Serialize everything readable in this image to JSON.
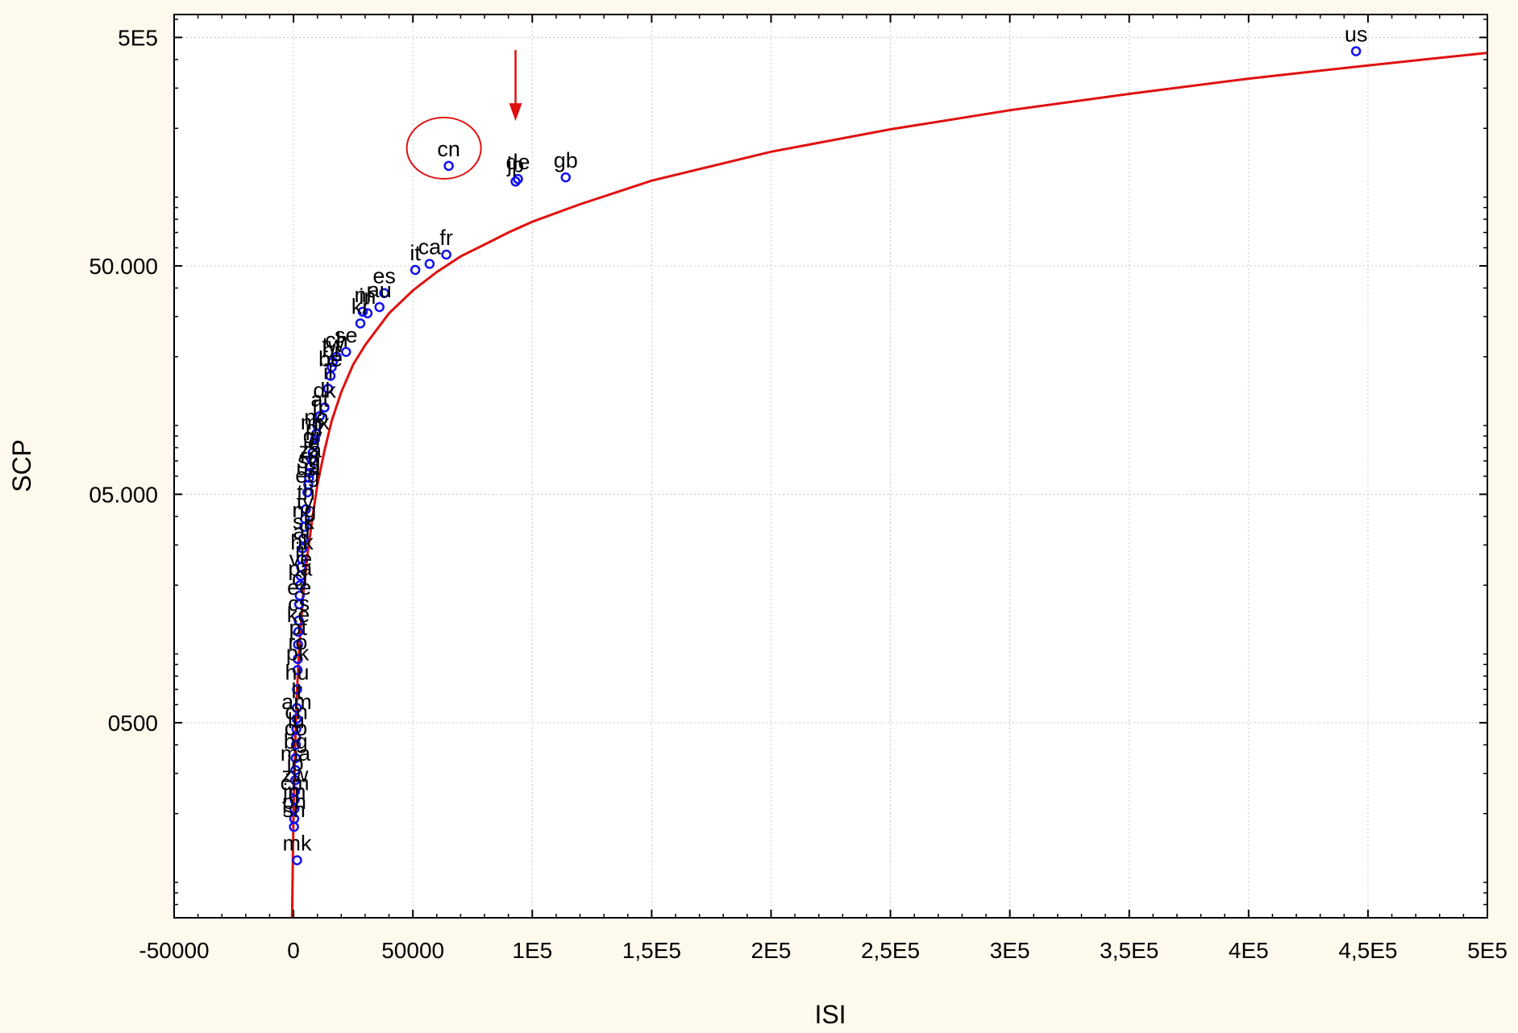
{
  "chart_data": {
    "type": "scatter",
    "title": "",
    "xlabel": "ISI",
    "ylabel": "SCP",
    "x_scale": "linear",
    "y_scale": "log",
    "xlim": [
      -50000,
      500000
    ],
    "ylim": [
      70,
      630000
    ],
    "grid": true,
    "legend": "none",
    "x_ticks": [
      {
        "value": -50000,
        "label": "-50000"
      },
      {
        "value": 0,
        "label": "0"
      },
      {
        "value": 50000,
        "label": "50000"
      },
      {
        "value": 100000,
        "label": "1E5"
      },
      {
        "value": 150000,
        "label": "1,5E5"
      },
      {
        "value": 200000,
        "label": "2E5"
      },
      {
        "value": 250000,
        "label": "2,5E5"
      },
      {
        "value": 300000,
        "label": "3E5"
      },
      {
        "value": 350000,
        "label": "3,5E5"
      },
      {
        "value": 400000,
        "label": "4E5"
      },
      {
        "value": 450000,
        "label": "4,5E5"
      },
      {
        "value": 500000,
        "label": "5E5"
      }
    ],
    "y_ticks": [
      {
        "value": 500,
        "label": "0500"
      },
      {
        "value": 5000,
        "label": "05.000"
      },
      {
        "value": 50000,
        "label": "50.000"
      },
      {
        "value": 500000,
        "label": "5E5"
      }
    ],
    "colors": {
      "points": "#1010ee",
      "fit": "#e01010",
      "annotation": "#e01010"
    },
    "fit_curve": {
      "label": "",
      "points": [
        [
          -600,
          70
        ],
        [
          -300,
          120
        ],
        [
          0,
          200
        ],
        [
          700,
          400
        ],
        [
          1500,
          700
        ],
        [
          2500,
          1100
        ],
        [
          4000,
          1800
        ],
        [
          6000,
          2800
        ],
        [
          8000,
          4000
        ],
        [
          10000,
          5500
        ],
        [
          13000,
          7800
        ],
        [
          16000,
          10500
        ],
        [
          20000,
          14000
        ],
        [
          25000,
          18500
        ],
        [
          30000,
          22500
        ],
        [
          40000,
          31000
        ],
        [
          50000,
          39000
        ],
        [
          60000,
          47000
        ],
        [
          70000,
          55000
        ],
        [
          80000,
          62000
        ],
        [
          90000,
          70000
        ],
        [
          100000,
          78000
        ],
        [
          120000,
          93000
        ],
        [
          150000,
          118000
        ],
        [
          200000,
          158000
        ],
        [
          250000,
          198000
        ],
        [
          300000,
          240000
        ],
        [
          350000,
          283000
        ],
        [
          400000,
          330000
        ],
        [
          450000,
          377000
        ],
        [
          500000,
          428000
        ]
      ]
    },
    "points": [
      {
        "x": 445000,
        "y": 435000,
        "label": "us"
      },
      {
        "x": 114000,
        "y": 122000,
        "label": "gb"
      },
      {
        "x": 94000,
        "y": 120000,
        "label": "de"
      },
      {
        "x": 93000,
        "y": 117000,
        "label": "jp"
      },
      {
        "x": 65000,
        "y": 137000,
        "label": "cn"
      },
      {
        "x": 64000,
        "y": 56000,
        "label": "fr"
      },
      {
        "x": 57000,
        "y": 51000,
        "label": "ca"
      },
      {
        "x": 51000,
        "y": 48000,
        "label": "it"
      },
      {
        "x": 38000,
        "y": 38000,
        "label": "es"
      },
      {
        "x": 36000,
        "y": 33000,
        "label": "au"
      },
      {
        "x": 31000,
        "y": 31000,
        "label": "in"
      },
      {
        "x": 29000,
        "y": 31500,
        "label": "nl"
      },
      {
        "x": 28000,
        "y": 28000,
        "label": "kr"
      },
      {
        "x": 22000,
        "y": 21000,
        "label": "se"
      },
      {
        "x": 18000,
        "y": 20000,
        "label": "ch"
      },
      {
        "x": 16500,
        "y": 19000,
        "label": "tw"
      },
      {
        "x": 16000,
        "y": 18000,
        "label": "br"
      },
      {
        "x": 15500,
        "y": 16500,
        "label": "be"
      },
      {
        "x": 14500,
        "y": 14500,
        "label": "il"
      },
      {
        "x": 13000,
        "y": 12000,
        "label": "dk"
      },
      {
        "x": 11000,
        "y": 11000,
        "label": "at"
      },
      {
        "x": 10000,
        "y": 10000,
        "label": "fi"
      },
      {
        "x": 9500,
        "y": 9200,
        "label": "no"
      },
      {
        "x": 9000,
        "y": 8700,
        "label": "mx"
      },
      {
        "x": 8500,
        "y": 8200,
        "label": "pl"
      },
      {
        "x": 8000,
        "y": 7600,
        "label": "gr"
      },
      {
        "x": 7500,
        "y": 7100,
        "label": "ie"
      },
      {
        "x": 7000,
        "y": 6600,
        "label": "za"
      },
      {
        "x": 6800,
        "y": 6200,
        "label": "ru"
      },
      {
        "x": 6500,
        "y": 5900,
        "label": "sg"
      },
      {
        "x": 6200,
        "y": 5500,
        "label": "ua"
      },
      {
        "x": 5800,
        "y": 5100,
        "label": "eg"
      },
      {
        "x": 5200,
        "y": 4300,
        "label": "th"
      },
      {
        "x": 4800,
        "y": 3900,
        "label": "ty"
      },
      {
        "x": 4500,
        "y": 3600,
        "label": "ng"
      },
      {
        "x": 4200,
        "y": 3200,
        "label": "sk"
      },
      {
        "x": 3800,
        "y": 2900,
        "label": "ar"
      },
      {
        "x": 3500,
        "y": 2600,
        "label": "hk"
      },
      {
        "x": 3200,
        "y": 2400,
        "label": "ir"
      },
      {
        "x": 3000,
        "y": 2200,
        "label": "ve"
      },
      {
        "x": 2800,
        "y": 2000,
        "label": "pa"
      },
      {
        "x": 2600,
        "y": 1800,
        "label": "cl"
      },
      {
        "x": 2400,
        "y": 1650,
        "label": "ee"
      },
      {
        "x": 2200,
        "y": 1400,
        "label": "cs"
      },
      {
        "x": 2000,
        "y": 1250,
        "label": "ke"
      },
      {
        "x": 1900,
        "y": 1100,
        "label": "pt"
      },
      {
        "x": 1800,
        "y": 950,
        "label": "ro"
      },
      {
        "x": 1700,
        "y": 850,
        "label": "pk"
      },
      {
        "x": 1500,
        "y": 700,
        "label": "hu"
      },
      {
        "x": 1400,
        "y": 580,
        "label": "lt"
      },
      {
        "x": 1300,
        "y": 520,
        "label": "am"
      },
      {
        "x": 1200,
        "y": 470,
        "label": "cn"
      },
      {
        "x": 1100,
        "y": 430,
        "label": "lu"
      },
      {
        "x": 1000,
        "y": 400,
        "label": "co"
      },
      {
        "x": 900,
        "y": 350,
        "label": "bg"
      },
      {
        "x": 800,
        "y": 310,
        "label": "ma"
      },
      {
        "x": 700,
        "y": 280,
        "label": "jo"
      },
      {
        "x": 600,
        "y": 250,
        "label": "zw"
      },
      {
        "x": 500,
        "y": 230,
        "label": "cm"
      },
      {
        "x": 400,
        "y": 210,
        "label": "jm"
      },
      {
        "x": 300,
        "y": 190,
        "label": "ph"
      },
      {
        "x": 200,
        "y": 175,
        "label": "sn"
      },
      {
        "x": 1500,
        "y": 125,
        "label": "mk"
      }
    ],
    "annotations": [
      {
        "type": "circle",
        "target": "cn"
      },
      {
        "type": "arrow",
        "target": "de"
      }
    ]
  }
}
